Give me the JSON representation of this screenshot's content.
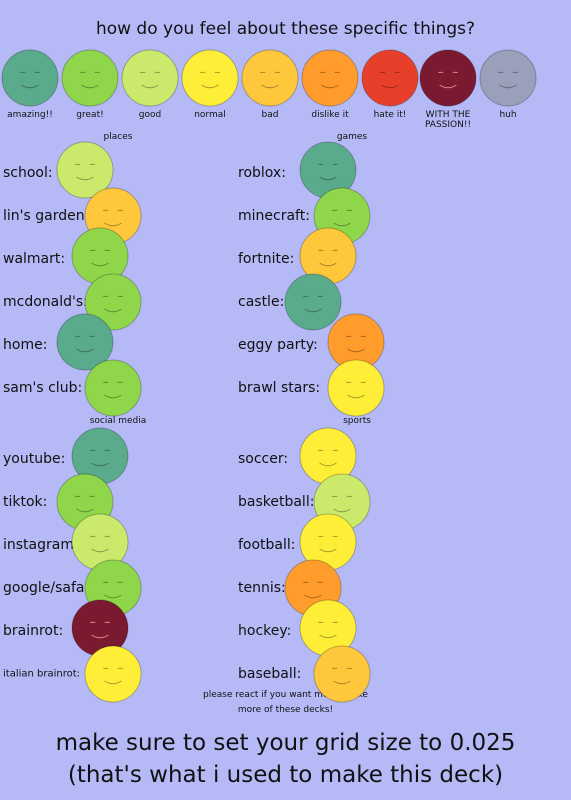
{
  "title": "how do you feel about these specific things?",
  "legend": [
    {
      "label": "amazing!!",
      "color": "#5aaa8c"
    },
    {
      "label": "great!",
      "color": "#8fd64a"
    },
    {
      "label": "good",
      "color": "#cbea6c"
    },
    {
      "label": "normal",
      "color": "#ffee38"
    },
    {
      "label": "bad",
      "color": "#ffc83c"
    },
    {
      "label": "dislike it",
      "color": "#ff9c2c"
    },
    {
      "label": "hate it!",
      "color": "#e6402a"
    },
    {
      "label": "WITH THE PASSION!!",
      "color": "#7a1a30"
    },
    {
      "label": "huh",
      "color": "#9aa0ba"
    }
  ],
  "sections": [
    {
      "heading": "places",
      "items": [
        {
          "label": "school:",
          "color": "#cbea6c"
        },
        {
          "label": "lin's garden:",
          "color": "#ffc83c"
        },
        {
          "label": "walmart:",
          "color": "#8fd64a"
        },
        {
          "label": "mcdonald's:",
          "color": "#8fd64a"
        },
        {
          "label": "home:",
          "color": "#5aaa8c"
        },
        {
          "label": "sam's club:",
          "color": "#8fd64a"
        }
      ]
    },
    {
      "heading": "games",
      "items": [
        {
          "label": "roblox:",
          "color": "#5aaa8c"
        },
        {
          "label": "minecraft:",
          "color": "#8fd64a"
        },
        {
          "label": "fortnite:",
          "color": "#ffc83c"
        },
        {
          "label": "castle:",
          "color": "#5aaa8c"
        },
        {
          "label": "eggy party:",
          "color": "#ff9c2c"
        },
        {
          "label": "brawl stars:",
          "color": "#ffee38"
        }
      ]
    },
    {
      "heading": "social media",
      "items": [
        {
          "label": "youtube:",
          "color": "#5aaa8c"
        },
        {
          "label": "tiktok:",
          "color": "#8fd64a"
        },
        {
          "label": "instagram:",
          "color": "#cbea6c"
        },
        {
          "label": "google/safari:",
          "color": "#8fd64a"
        },
        {
          "label": "brainrot:",
          "color": "#7a1a30"
        },
        {
          "label": "italian brainrot:",
          "color": "#ffee38"
        }
      ]
    },
    {
      "heading": "sports",
      "items": [
        {
          "label": "soccer:",
          "color": "#ffee38"
        },
        {
          "label": "basketball:",
          "color": "#cbea6c"
        },
        {
          "label": "football:",
          "color": "#ffee38"
        },
        {
          "label": "tennis:",
          "color": "#ff9c2c"
        },
        {
          "label": "hockey:",
          "color": "#ffee38"
        },
        {
          "label": "baseball:",
          "color": "#ffc83c"
        }
      ]
    }
  ],
  "note": [
    "please react if you want me to make",
    "more of these decks!"
  ],
  "footer": [
    "make sure to set your grid size to 0.025",
    "(that's what i used to make this deck)"
  ]
}
